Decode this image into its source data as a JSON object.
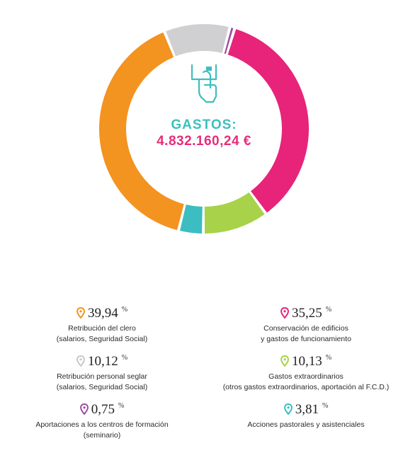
{
  "center": {
    "title": "GASTOS:",
    "total": "4.832.160,24 €"
  },
  "chart_data": {
    "type": "pie",
    "donut": true,
    "slices": [
      {
        "label": "Conservación de edificios y gastos de funcionamiento",
        "value": 35.25,
        "color": "#e8237a"
      },
      {
        "label": "Gastos extraordinarios (otros gastos extraordinarios, aportación al F.C.D.)",
        "value": 10.13,
        "color": "#a8d24a"
      },
      {
        "label": "Acciones pastorales y asistenciales",
        "value": 3.81,
        "color": "#3bbdc1"
      },
      {
        "label": "Retribución del clero (salarios, Seguridad Social)",
        "value": 39.94,
        "color": "#f39320"
      },
      {
        "label": "Retribución personal seglar (salarios, Seguridad Social)",
        "value": 10.12,
        "color": "#d0d0d2"
      },
      {
        "label": "Aportaciones a los centros de formación (seminario)",
        "value": 0.75,
        "color": "#9c4fa0"
      }
    ]
  },
  "legend": [
    {
      "pct": "39,94",
      "sym": "%",
      "line1": "Retribución del clero",
      "line2": "(salarios, Seguridad Social)",
      "color": "#f39320"
    },
    {
      "pct": "35,25",
      "sym": "%",
      "line1": "Conservación de edificios",
      "line2": "y gastos de funcionamiento",
      "color": "#e8237a"
    },
    {
      "pct": "10,12",
      "sym": "%",
      "line1": "Retribución personal seglar",
      "line2": "(salarios, Seguridad Social)",
      "color": "#c8c8ca"
    },
    {
      "pct": "10,13",
      "sym": "%",
      "line1": "Gastos extraordinarios",
      "line2": "(otros gastos extraordinarios, aportación al F.C.D.)",
      "color": "#a8d24a"
    },
    {
      "pct": "0,75",
      "sym": "%",
      "line1": "Aportaciones a los centros de formación",
      "line2": "(seminario)",
      "color": "#9c4fa0"
    },
    {
      "pct": "3,81",
      "sym": "%",
      "line1": "Acciones pastorales y asistenciales",
      "line2": "",
      "color": "#3bbdc1"
    }
  ],
  "icon": "hand-dropping-coin-icon"
}
